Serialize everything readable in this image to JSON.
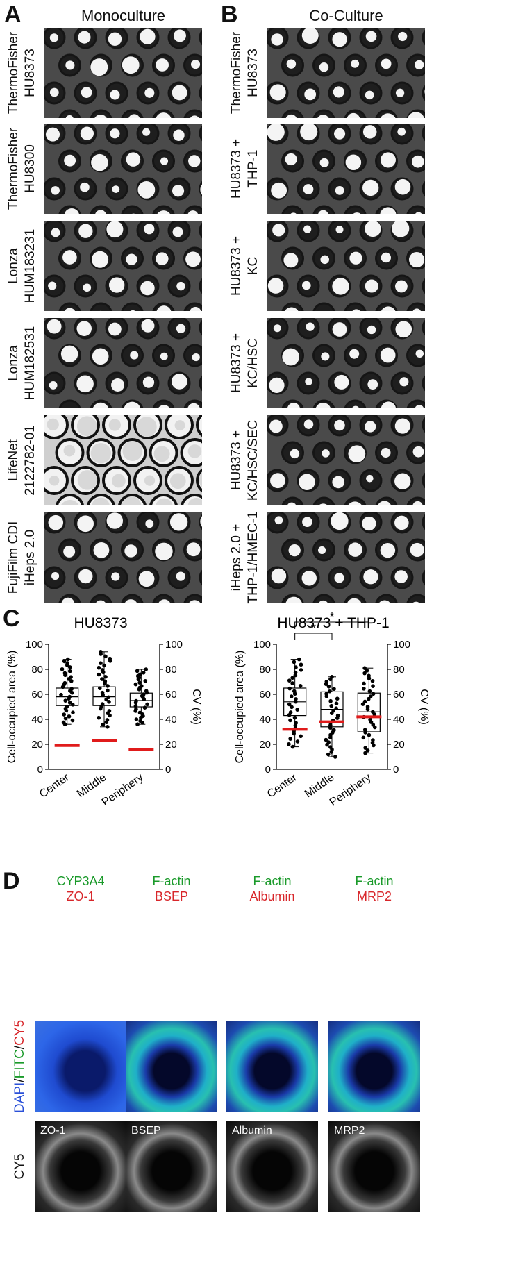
{
  "panels": {
    "a": "A",
    "b": "B",
    "c": "C",
    "d": "D",
    "a_title": "Monoculture",
    "b_title": "Co-Culture"
  },
  "mono_rows": [
    [
      "ThermoFisher",
      "HU8373"
    ],
    [
      "ThermoFisher",
      "HU8300"
    ],
    [
      "Lonza",
      "HUM183231"
    ],
    [
      "Lonza",
      "HUM182531"
    ],
    [
      "LifeNet",
      "2122782-01"
    ],
    [
      "FujiFilm CDI",
      "iHeps 2.0"
    ]
  ],
  "co_rows": [
    [
      "ThermoFisher",
      "HU8373"
    ],
    [
      "HU8373 +",
      "THP-1"
    ],
    [
      "HU8373 +",
      "KC"
    ],
    [
      "HU8373 +",
      "KC/HSC"
    ],
    [
      "HU8373 +",
      "KC/HSC/SEC"
    ],
    [
      "iHeps 2.0 +",
      "THP-1/HMEC-1"
    ]
  ],
  "chart_data": [
    {
      "type": "box",
      "title": "HU8373",
      "ylabel": "Cell-occupied area (%)",
      "y2label": "CV (%)",
      "ylim": [
        0,
        100
      ],
      "yticks": [
        "0",
        "20",
        "40",
        "60",
        "80",
        "100"
      ],
      "categories": [
        "Center",
        "Middle",
        "Periphery"
      ],
      "boxes": [
        {
          "min": 36,
          "q1": 51,
          "median": 58,
          "q3": 65,
          "max": 88
        },
        {
          "min": 34,
          "q1": 51,
          "median": 58,
          "q3": 66,
          "max": 94
        },
        {
          "min": 36,
          "q1": 50,
          "median": 55,
          "q3": 61,
          "max": 80
        }
      ],
      "cv": [
        19,
        23,
        16
      ],
      "significance": []
    },
    {
      "type": "box",
      "title": "HU8373 + THP-1",
      "ylabel": "Cell-occupied area (%)",
      "y2label": "CV (%)",
      "ylim": [
        0,
        100
      ],
      "yticks": [
        "0",
        "20",
        "40",
        "60",
        "80",
        "100"
      ],
      "categories": [
        "Center",
        "Middle",
        "Periphery"
      ],
      "boxes": [
        {
          "min": 18,
          "q1": 43,
          "median": 54,
          "q3": 65,
          "max": 88
        },
        {
          "min": 10,
          "q1": 34,
          "median": 48,
          "q3": 62,
          "max": 74
        },
        {
          "min": 13,
          "q1": 30,
          "median": 46,
          "q3": 61,
          "max": 81
        }
      ],
      "cv": [
        32,
        38,
        42
      ],
      "significance": [
        {
          "from": 0,
          "to": 1,
          "label": "*"
        },
        {
          "from": 0,
          "to": 2,
          "label": "*"
        }
      ]
    }
  ],
  "d_panel": {
    "side_top_parts": [
      "DAPI",
      "/",
      "FITC",
      "/",
      "CY5"
    ],
    "side_bottom": "CY5",
    "columns": [
      {
        "green": "CYP3A4",
        "red": "ZO-1",
        "gray": "ZO-1"
      },
      {
        "green": "F-actin",
        "red": "BSEP",
        "gray": "BSEP"
      },
      {
        "green": "F-actin",
        "red": "Albumin",
        "gray": "Albumin"
      },
      {
        "green": "F-actin",
        "red": "MRP2",
        "gray": "MRP2"
      }
    ]
  },
  "colors": {
    "cv_line": "#e01b1b",
    "green_label": "#1a9a2a",
    "red_label": "#d8262a",
    "dapi": "#2a50d8"
  }
}
